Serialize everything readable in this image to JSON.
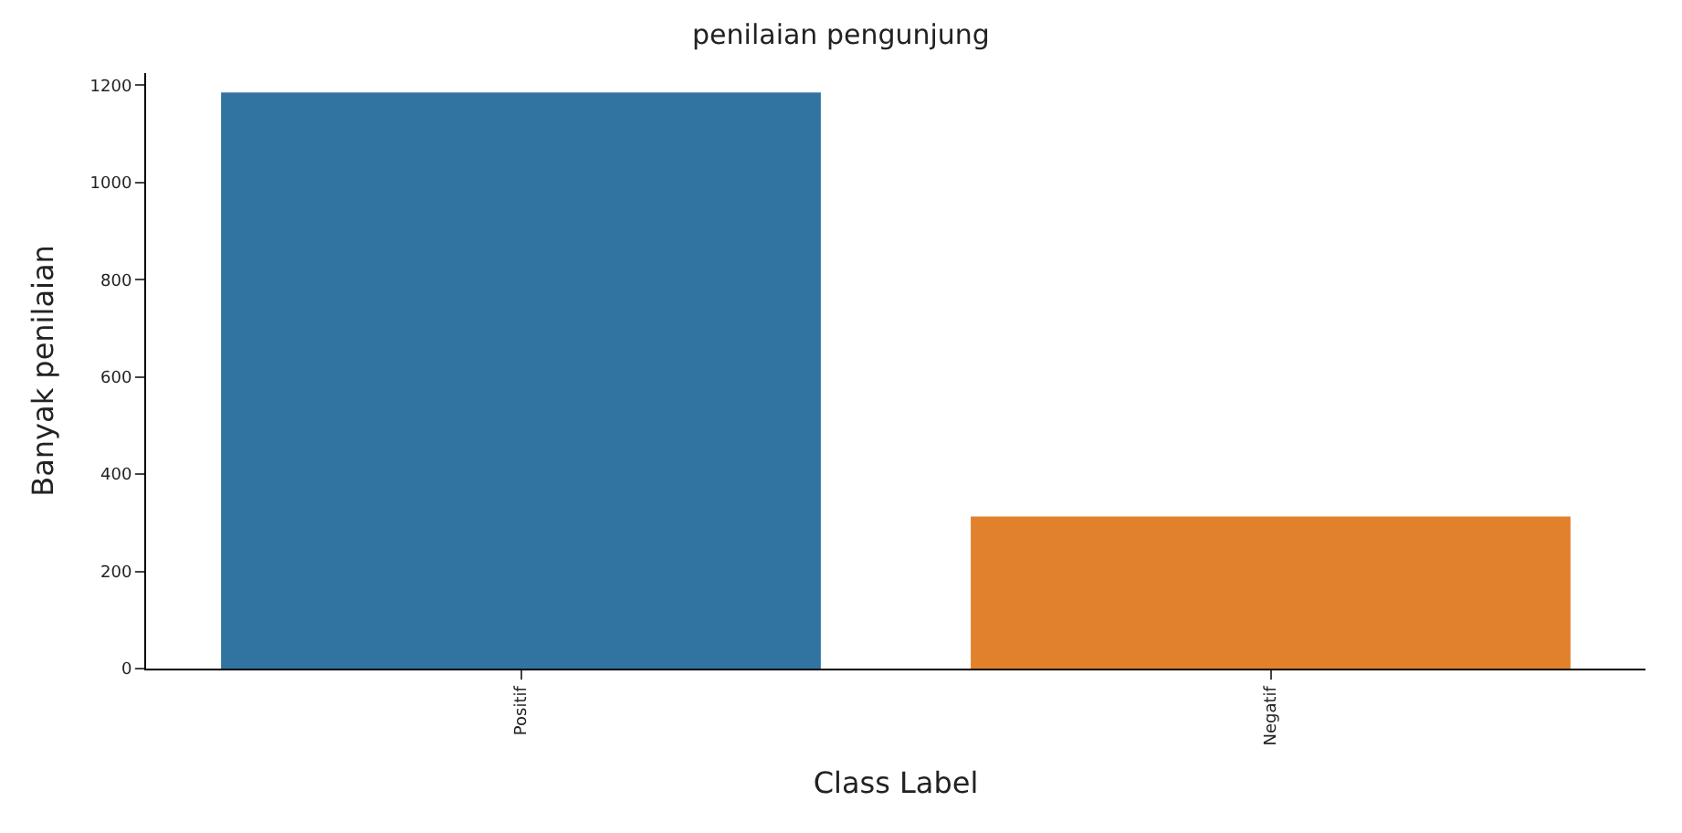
{
  "chart_data": {
    "type": "bar",
    "title": "penilaian pengunjung",
    "xlabel": "Class Label",
    "ylabel": "Banyak penilaian",
    "categories": [
      "Positif",
      "Negatif"
    ],
    "colors": [
      "#3274a1",
      "#e1812c"
    ],
    "values": [
      1185,
      313
    ],
    "ylim": [
      0,
      1225
    ],
    "yticks": [
      0,
      200,
      400,
      600,
      800,
      1000,
      1200
    ]
  }
}
